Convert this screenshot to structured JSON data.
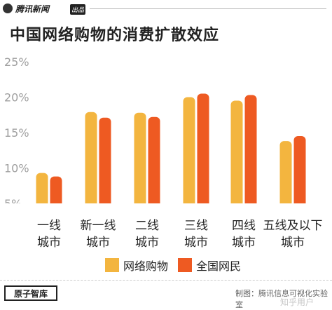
{
  "header": {
    "brand": "腾讯新闻",
    "tag": "出品"
  },
  "chart_data": {
    "type": "bar",
    "title": "中国网络购物的消费扩散效应",
    "categories": [
      [
        "一线",
        "城市"
      ],
      [
        "新一线",
        "城市"
      ],
      [
        "二线",
        "城市"
      ],
      [
        "三线",
        "城市"
      ],
      [
        "四线",
        "城市"
      ],
      [
        "五线及以下",
        "城市"
      ]
    ],
    "series": [
      {
        "name": "网络购物",
        "color": "#F3B53F",
        "values": [
          9.3,
          17.9,
          17.8,
          20.0,
          19.5,
          13.8
        ]
      },
      {
        "name": "全国网民",
        "color": "#EE5A22",
        "values": [
          8.8,
          17.1,
          17.2,
          20.5,
          20.3,
          14.5
        ]
      }
    ],
    "yticks": [
      "25%",
      "20%",
      "15%",
      "10%",
      "5%"
    ],
    "ylim": [
      5,
      25
    ],
    "grid": false,
    "legend": "bottom"
  },
  "footer": {
    "logo": "原子智库",
    "credit": "制图：腾讯信息可视化实验室",
    "watermark": "知乎用户"
  }
}
